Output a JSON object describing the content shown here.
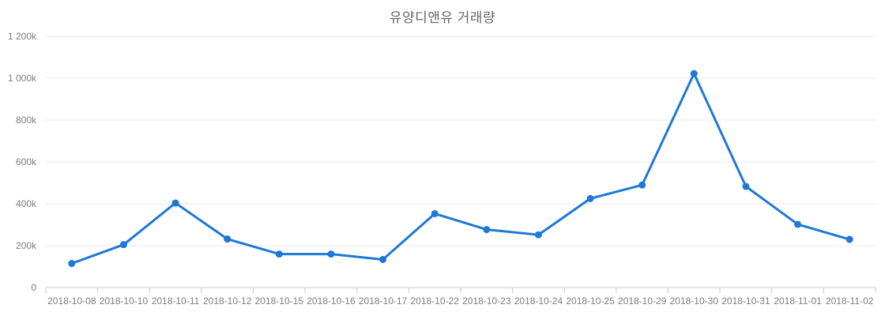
{
  "chart_data": {
    "type": "line",
    "title": "유양디앤유 거래량",
    "categories": [
      "2018-10-08",
      "2018-10-10",
      "2018-10-11",
      "2018-10-12",
      "2018-10-15",
      "2018-10-16",
      "2018-10-17",
      "2018-10-22",
      "2018-10-23",
      "2018-10-24",
      "2018-10-25",
      "2018-10-29",
      "2018-10-30",
      "2018-10-31",
      "2018-11-01",
      "2018-11-02"
    ],
    "values": [
      115000,
      205000,
      404000,
      232000,
      160000,
      160000,
      134000,
      353000,
      277000,
      252000,
      425000,
      490000,
      1022000,
      483000,
      302000,
      230000
    ],
    "xlabel": "",
    "ylabel": "",
    "ylim": [
      0,
      1200000
    ],
    "yticks": [
      0,
      200000,
      400000,
      600000,
      800000,
      1000000,
      1200000
    ],
    "ytick_labels": [
      "0",
      "200k",
      "400k",
      "600k",
      "800k",
      "1 000k",
      "1 200k"
    ],
    "grid": true,
    "legend": false,
    "marker": "circle",
    "colors": {
      "line": "#1e78d7",
      "marker": "#1e78d7",
      "grid": "#e8e8e8",
      "axis_line": "#c9c9c9",
      "axis_text": "#7d7d7d",
      "title": "#666666",
      "background": "#ffffff"
    }
  }
}
